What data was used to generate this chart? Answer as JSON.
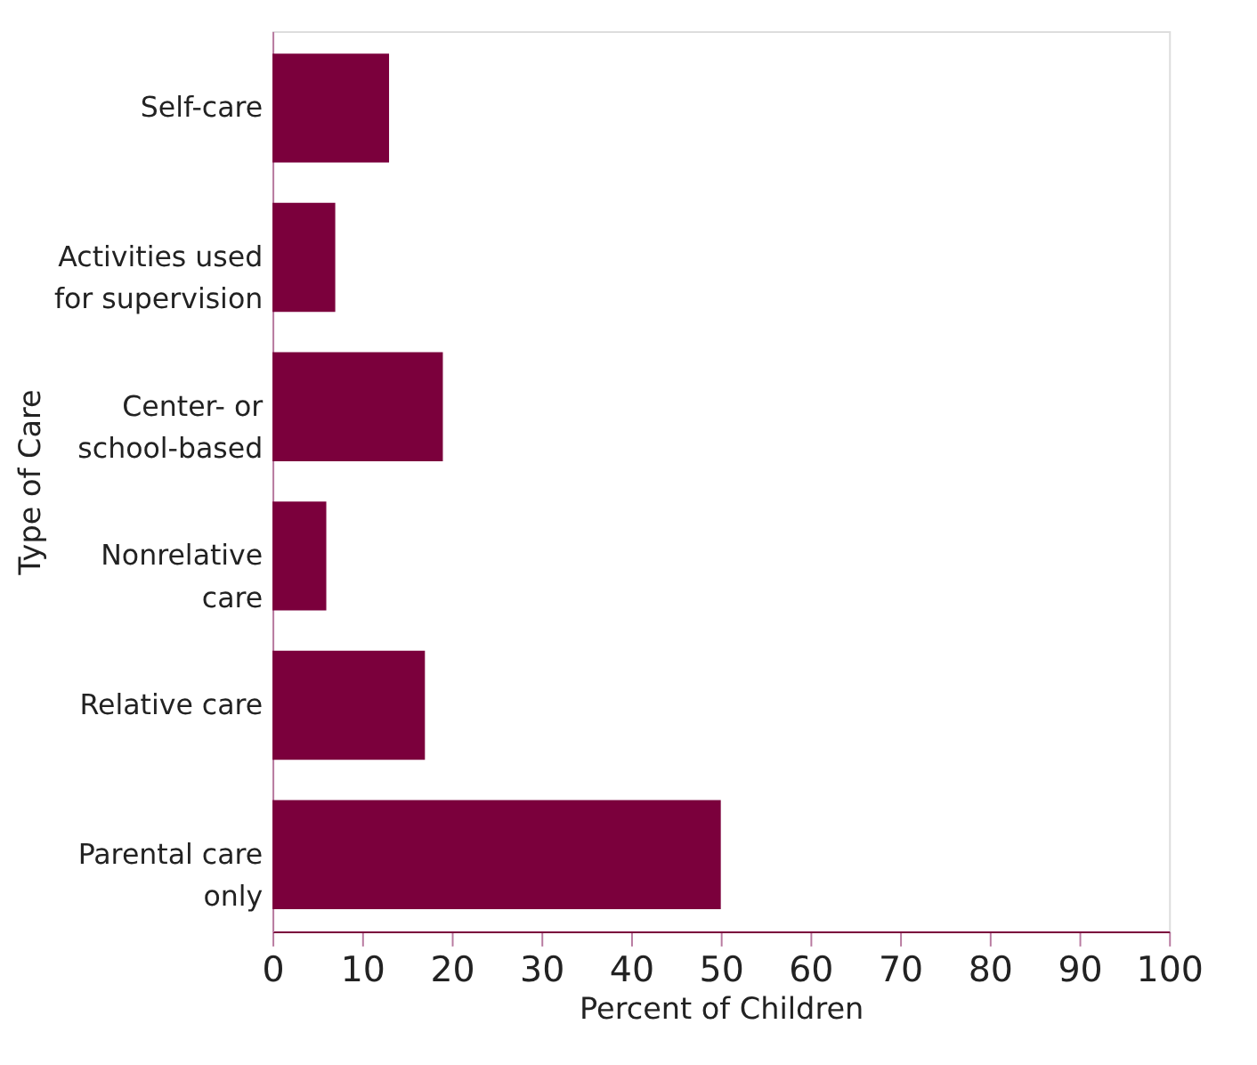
{
  "chart_data": {
    "type": "bar",
    "orientation": "horizontal",
    "xlabel": "Percent of Children",
    "ylabel": "Type of Care",
    "categories": [
      "Self-care",
      "Activities used\nfor supervision",
      "Center- or\nschool-based",
      "Nonrelative\ncare",
      "Relative care",
      "Parental care\nonly"
    ],
    "values": [
      13,
      7,
      19,
      6,
      17,
      50
    ],
    "color": "#7b003c",
    "xlim": [
      0,
      100
    ],
    "xticks": [
      0,
      10,
      20,
      30,
      40,
      50,
      60,
      70,
      80,
      90,
      100
    ],
    "grid": false
  }
}
